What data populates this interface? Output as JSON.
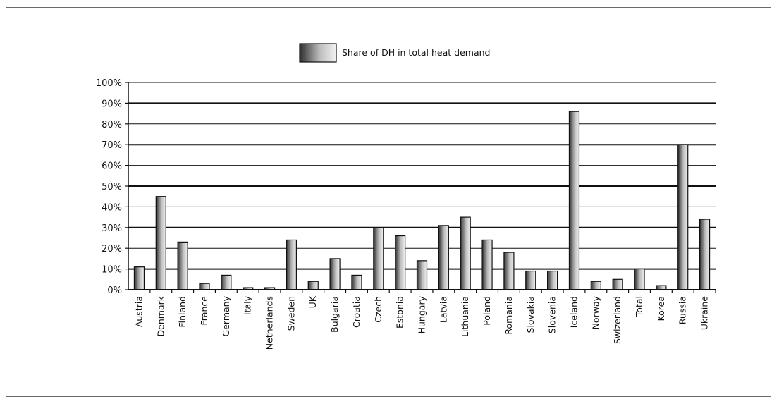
{
  "chart_data": {
    "type": "bar",
    "title": "",
    "xlabel": "",
    "ylabel": "",
    "ylim": [
      0,
      100
    ],
    "y_ticks": [
      "0%",
      "10%",
      "20%",
      "30%",
      "40%",
      "50%",
      "60%",
      "70%",
      "80%",
      "90%",
      "100%"
    ],
    "grid": true,
    "legend_position": "top-center",
    "categories": [
      "Austria",
      "Denmark",
      "Finland",
      "France",
      "Germany",
      "Italy",
      "Netherlands",
      "Sweden",
      "UK",
      "Bulgaria",
      "Croatia",
      "Czech",
      "Estonia",
      "Hungary",
      "Latvia",
      "Lithuania",
      "Poland",
      "Romania",
      "Slovakia",
      "Slovenia",
      "Iceland",
      "Norway",
      "Swizerland",
      "Total",
      "Korea",
      "Russia",
      "Ukraine"
    ],
    "series": [
      {
        "name": "Share of DH in total heat demand",
        "values": [
          11,
          45,
          23,
          3,
          7,
          1,
          1,
          24,
          4,
          15,
          7,
          30,
          26,
          14,
          31,
          35,
          24,
          18,
          9,
          9,
          86,
          4,
          5,
          10,
          2,
          70,
          34
        ]
      }
    ],
    "colors": {
      "bar_dark": "#2e2e2e",
      "bar_light": "#e6e6e6",
      "grid": "#111111",
      "axis": "#111111"
    }
  }
}
